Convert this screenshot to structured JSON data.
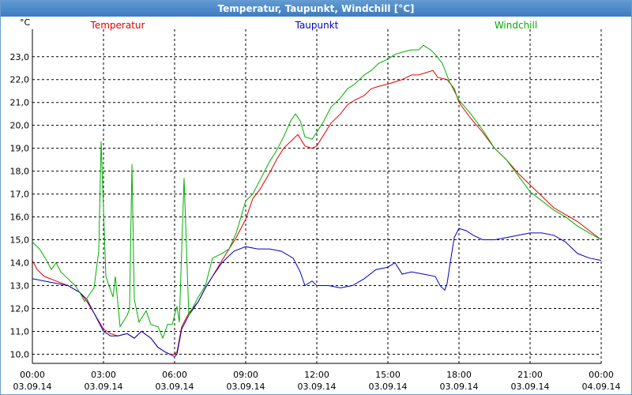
{
  "window": {
    "title": "Temperatur, Taupunkt, Windchill [°C]"
  },
  "chart_data": {
    "type": "line",
    "unit_label": "°C",
    "ylim": [
      9.6,
      24.2
    ],
    "y_ticks": [
      {
        "value": 10,
        "label": "10,0"
      },
      {
        "value": 11,
        "label": "11,0"
      },
      {
        "value": 12,
        "label": "12,0"
      },
      {
        "value": 13,
        "label": "13,0"
      },
      {
        "value": 14,
        "label": "14,0"
      },
      {
        "value": 15,
        "label": "15,0"
      },
      {
        "value": 16,
        "label": "16,0"
      },
      {
        "value": 17,
        "label": "17,0"
      },
      {
        "value": 18,
        "label": "18,0"
      },
      {
        "value": 19,
        "label": "19,0"
      },
      {
        "value": 20,
        "label": "20,0"
      },
      {
        "value": 21,
        "label": "21,0"
      },
      {
        "value": 22,
        "label": "22,0"
      },
      {
        "value": 23,
        "label": "23,0"
      }
    ],
    "xlim": [
      0,
      24
    ],
    "x_ticks": [
      {
        "value": 0,
        "time": "00:00",
        "date": "03.09.14"
      },
      {
        "value": 3,
        "time": "03:00",
        "date": "03.09.14"
      },
      {
        "value": 6,
        "time": "06:00",
        "date": "03.09.14"
      },
      {
        "value": 9,
        "time": "09:00",
        "date": "03.09.14"
      },
      {
        "value": 12,
        "time": "12:00",
        "date": "03.09.14"
      },
      {
        "value": 15,
        "time": "15:00",
        "date": "03.09.14"
      },
      {
        "value": 18,
        "time": "18:00",
        "date": "03.09.14"
      },
      {
        "value": 21,
        "time": "21:00",
        "date": "03.09.14"
      },
      {
        "value": 24,
        "time": "00:00",
        "date": "04.09.14"
      }
    ],
    "grid": true,
    "series": [
      {
        "name": "Temperatur",
        "color": "#e00000",
        "legend_position": "left",
        "points": [
          [
            0,
            14.1
          ],
          [
            0.2,
            13.7
          ],
          [
            0.5,
            13.4
          ],
          [
            1,
            13.2
          ],
          [
            1.5,
            13.0
          ],
          [
            2,
            12.7
          ],
          [
            2.3,
            12.3
          ],
          [
            2.6,
            11.8
          ],
          [
            3,
            11.1
          ],
          [
            3.3,
            10.9
          ],
          [
            3.6,
            10.8
          ],
          [
            4,
            10.9
          ],
          [
            4.3,
            10.7
          ],
          [
            4.6,
            11.0
          ],
          [
            5,
            10.7
          ],
          [
            5.3,
            10.3
          ],
          [
            5.6,
            10.1
          ],
          [
            5.8,
            10.0
          ],
          [
            6,
            10.0
          ],
          [
            6.1,
            10.1
          ],
          [
            6.3,
            11.2
          ],
          [
            6.6,
            11.8
          ],
          [
            7,
            12.3
          ],
          [
            7.3,
            12.9
          ],
          [
            7.6,
            13.4
          ],
          [
            8,
            14.1
          ],
          [
            8.3,
            14.6
          ],
          [
            8.6,
            15.1
          ],
          [
            9,
            15.9
          ],
          [
            9.3,
            16.8
          ],
          [
            9.6,
            17.2
          ],
          [
            10,
            17.9
          ],
          [
            10.3,
            18.5
          ],
          [
            10.6,
            19.0
          ],
          [
            11,
            19.4
          ],
          [
            11.2,
            19.6
          ],
          [
            11.5,
            19.1
          ],
          [
            11.8,
            19.0
          ],
          [
            12,
            19.1
          ],
          [
            12.3,
            19.6
          ],
          [
            12.6,
            20.1
          ],
          [
            13,
            20.5
          ],
          [
            13.3,
            20.9
          ],
          [
            13.6,
            21.1
          ],
          [
            14,
            21.3
          ],
          [
            14.3,
            21.6
          ],
          [
            14.6,
            21.7
          ],
          [
            15,
            21.8
          ],
          [
            15.3,
            21.9
          ],
          [
            15.6,
            22.0
          ],
          [
            16,
            22.2
          ],
          [
            16.3,
            22.2
          ],
          [
            16.6,
            22.3
          ],
          [
            16.9,
            22.4
          ],
          [
            17.1,
            22.1
          ],
          [
            17.5,
            22.0
          ],
          [
            17.8,
            21.6
          ],
          [
            18,
            21.0
          ],
          [
            18.5,
            20.3
          ],
          [
            19,
            19.7
          ],
          [
            19.5,
            19.0
          ],
          [
            20,
            18.5
          ],
          [
            20.5,
            17.9
          ],
          [
            21,
            17.4
          ],
          [
            21.5,
            16.9
          ],
          [
            22,
            16.4
          ],
          [
            22.5,
            16.1
          ],
          [
            23,
            15.8
          ],
          [
            23.5,
            15.4
          ],
          [
            24,
            15.0
          ]
        ]
      },
      {
        "name": "Taupunkt",
        "color": "#0000c0",
        "legend_position": "center",
        "points": [
          [
            0,
            13.3
          ],
          [
            0.5,
            13.2
          ],
          [
            1,
            13.1
          ],
          [
            1.5,
            13.0
          ],
          [
            2,
            12.7
          ],
          [
            2.3,
            12.4
          ],
          [
            2.6,
            11.8
          ],
          [
            3,
            11.0
          ],
          [
            3.3,
            10.8
          ],
          [
            3.6,
            10.8
          ],
          [
            4,
            10.9
          ],
          [
            4.3,
            10.7
          ],
          [
            4.6,
            11.0
          ],
          [
            5,
            10.7
          ],
          [
            5.3,
            10.3
          ],
          [
            5.6,
            10.1
          ],
          [
            5.8,
            10.0
          ],
          [
            6,
            9.9
          ],
          [
            6.1,
            10.0
          ],
          [
            6.3,
            11.1
          ],
          [
            6.6,
            11.7
          ],
          [
            7,
            12.3
          ],
          [
            7.3,
            12.9
          ],
          [
            7.6,
            13.4
          ],
          [
            8,
            14.0
          ],
          [
            8.5,
            14.5
          ],
          [
            9,
            14.7
          ],
          [
            9.5,
            14.6
          ],
          [
            10,
            14.6
          ],
          [
            10.5,
            14.5
          ],
          [
            11,
            14.2
          ],
          [
            11.3,
            13.6
          ],
          [
            11.5,
            13.0
          ],
          [
            11.8,
            13.2
          ],
          [
            12,
            13.0
          ],
          [
            12.5,
            13.0
          ],
          [
            13,
            12.9
          ],
          [
            13.5,
            13.0
          ],
          [
            14,
            13.3
          ],
          [
            14.5,
            13.7
          ],
          [
            15,
            13.8
          ],
          [
            15.3,
            14.0
          ],
          [
            15.6,
            13.5
          ],
          [
            16,
            13.6
          ],
          [
            16.5,
            13.5
          ],
          [
            17,
            13.4
          ],
          [
            17.2,
            13.0
          ],
          [
            17.4,
            12.8
          ],
          [
            17.5,
            13.1
          ],
          [
            17.6,
            13.8
          ],
          [
            17.8,
            15.1
          ],
          [
            18,
            15.5
          ],
          [
            18.3,
            15.4
          ],
          [
            18.6,
            15.2
          ],
          [
            19,
            15.0
          ],
          [
            19.5,
            15.0
          ],
          [
            20,
            15.1
          ],
          [
            20.5,
            15.2
          ],
          [
            21,
            15.3
          ],
          [
            21.5,
            15.3
          ],
          [
            22,
            15.2
          ],
          [
            22.5,
            14.9
          ],
          [
            23,
            14.4
          ],
          [
            23.5,
            14.2
          ],
          [
            24,
            14.1
          ]
        ]
      },
      {
        "name": "Windchill",
        "color": "#00b000",
        "legend_position": "right",
        "points": [
          [
            0,
            14.9
          ],
          [
            0.3,
            14.6
          ],
          [
            0.6,
            14.1
          ],
          [
            0.8,
            13.7
          ],
          [
            1,
            14.0
          ],
          [
            1.2,
            13.6
          ],
          [
            1.5,
            13.3
          ],
          [
            1.8,
            13.0
          ],
          [
            2,
            12.7
          ],
          [
            2.2,
            12.3
          ],
          [
            2.4,
            12.6
          ],
          [
            2.6,
            12.9
          ],
          [
            2.8,
            14.5
          ],
          [
            2.9,
            19.3
          ],
          [
            3.1,
            13.4
          ],
          [
            3.3,
            12.8
          ],
          [
            3.4,
            12.5
          ],
          [
            3.5,
            13.4
          ],
          [
            3.7,
            11.2
          ],
          [
            4,
            11.7
          ],
          [
            4.1,
            12.0
          ],
          [
            4.2,
            18.3
          ],
          [
            4.3,
            12.4
          ],
          [
            4.5,
            11.4
          ],
          [
            4.8,
            11.9
          ],
          [
            5,
            11.3
          ],
          [
            5.3,
            11.2
          ],
          [
            5.5,
            10.7
          ],
          [
            5.7,
            11.3
          ],
          [
            5.9,
            11.3
          ],
          [
            6.1,
            12.1
          ],
          [
            6.2,
            11.4
          ],
          [
            6.4,
            17.7
          ],
          [
            6.6,
            11.7
          ],
          [
            7,
            12.5
          ],
          [
            7.3,
            13.0
          ],
          [
            7.6,
            14.2
          ],
          [
            8,
            14.4
          ],
          [
            8.3,
            14.6
          ],
          [
            8.6,
            15.3
          ],
          [
            9,
            16.7
          ],
          [
            9.3,
            17.0
          ],
          [
            9.6,
            17.6
          ],
          [
            10,
            18.4
          ],
          [
            10.3,
            18.9
          ],
          [
            10.6,
            19.5
          ],
          [
            10.9,
            20.2
          ],
          [
            11.1,
            20.5
          ],
          [
            11.3,
            20.2
          ],
          [
            11.5,
            19.5
          ],
          [
            11.8,
            19.4
          ],
          [
            12,
            19.7
          ],
          [
            12.3,
            20.2
          ],
          [
            12.6,
            20.8
          ],
          [
            13,
            21.2
          ],
          [
            13.3,
            21.6
          ],
          [
            13.6,
            21.8
          ],
          [
            14,
            22.2
          ],
          [
            14.3,
            22.4
          ],
          [
            14.6,
            22.7
          ],
          [
            15,
            22.9
          ],
          [
            15.3,
            23.1
          ],
          [
            15.6,
            23.2
          ],
          [
            16,
            23.3
          ],
          [
            16.3,
            23.3
          ],
          [
            16.5,
            23.5
          ],
          [
            16.8,
            23.3
          ],
          [
            17,
            23.1
          ],
          [
            17.3,
            22.7
          ],
          [
            17.6,
            21.9
          ],
          [
            18,
            21.1
          ],
          [
            18.5,
            20.5
          ],
          [
            19,
            19.8
          ],
          [
            19.5,
            19.0
          ],
          [
            20,
            18.5
          ],
          [
            20.5,
            17.8
          ],
          [
            21,
            17.1
          ],
          [
            21.5,
            16.7
          ],
          [
            22,
            16.3
          ],
          [
            22.5,
            16.0
          ],
          [
            23,
            15.6
          ],
          [
            23.5,
            15.3
          ],
          [
            24,
            15.0
          ]
        ]
      }
    ]
  }
}
